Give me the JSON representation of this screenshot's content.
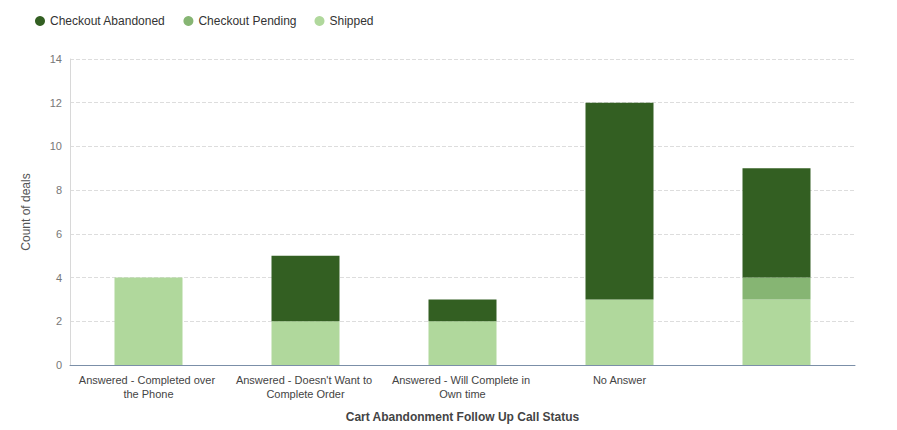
{
  "chart_data": {
    "type": "bar",
    "xlabel": "Cart Abandonment Follow Up Call Status",
    "ylabel": "Count of deals",
    "categories": [
      "Answered - Completed over the Phone",
      "Answered - Doesn't Want to Complete Order",
      "Answered - Will Complete in Own time",
      "No Answer",
      null
    ],
    "series": [
      {
        "name": "Checkout Abandoned",
        "color": "#335f22",
        "values": [
          0,
          3,
          1,
          9,
          5
        ]
      },
      {
        "name": "Checkout Pending",
        "color": "#86b573",
        "values": [
          0,
          0,
          0,
          0,
          1
        ]
      },
      {
        "name": "Shipped",
        "color": "#b0d89c",
        "values": [
          4,
          2,
          2,
          3,
          3
        ]
      }
    ],
    "stacked": true,
    "ylim": [
      0,
      14
    ],
    "yticks": [
      0,
      2,
      4,
      6,
      8,
      10,
      12,
      14
    ],
    "grid": true,
    "legend": "top-left"
  }
}
